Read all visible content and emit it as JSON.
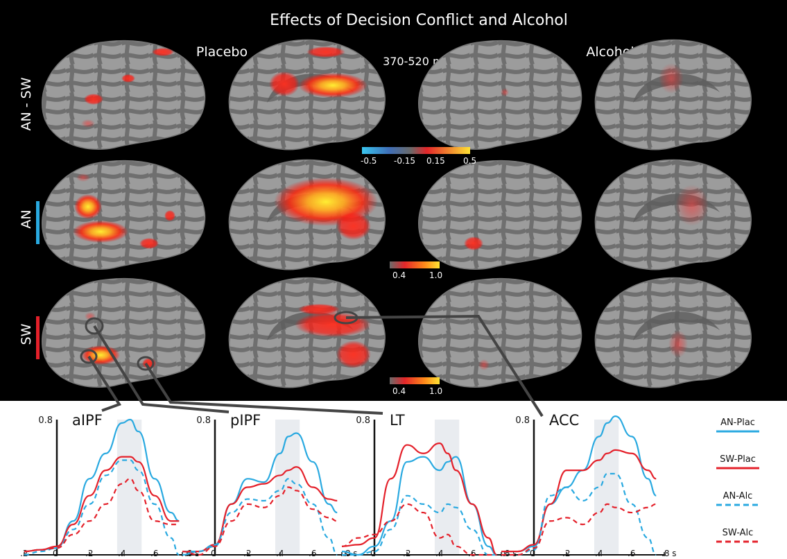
{
  "title": "Effects of Decision Conflict and Alcohol",
  "condition_labels": {
    "placebo": "Placebo",
    "time_window": "370-520 ms",
    "alcohol": "Alcohol"
  },
  "row_labels": {
    "an_sw": "AN - SW",
    "an": "AN",
    "sw": "SW"
  },
  "colorbars": {
    "contrast": {
      "ticks": [
        "-0.5",
        "-0.15",
        "0.15",
        "0.5"
      ]
    },
    "condition_an": {
      "ticks": [
        "0.4",
        "1.0"
      ]
    },
    "condition_sw": {
      "ticks": [
        "0.4",
        "1.0"
      ]
    }
  },
  "roi_titles": [
    "aIPF",
    "pIPF",
    "LT",
    "ACC"
  ],
  "x_ticks": [
    ".2",
    "0",
    ".2",
    ".4",
    ".6",
    ".8 s"
  ],
  "y_tick": "0.8",
  "legend": [
    {
      "label": "AN-Plac",
      "color": "#29a9e0",
      "dashed": false
    },
    {
      "label": "SW-Plac",
      "color": "#e4202a",
      "dashed": false
    },
    {
      "label": "AN-Alc",
      "color": "#29a9e0",
      "dashed": true
    },
    {
      "label": "SW-Alc",
      "color": "#e4202a",
      "dashed": true
    }
  ],
  "colors": {
    "an": "#29a9e0",
    "sw": "#e4202a",
    "panel_bg": "#000000",
    "highlight": "#e9ecf0"
  },
  "chart_data": {
    "type": "line",
    "x_unit": "s",
    "xlim": [
      -0.2,
      0.8
    ],
    "ylim": [
      0,
      0.8
    ],
    "highlight_window": [
      0.37,
      0.52
    ],
    "x": [
      -0.2,
      -0.1,
      0,
      0.1,
      0.2,
      0.3,
      0.4,
      0.45,
      0.5,
      0.6,
      0.7,
      0.75
    ],
    "panels": [
      {
        "title": "aIPF",
        "series": [
          {
            "name": "AN-Plac",
            "values": [
              0.02,
              0.03,
              0.04,
              0.2,
              0.45,
              0.6,
              0.78,
              0.8,
              0.73,
              0.45,
              0.25,
              0.2
            ]
          },
          {
            "name": "SW-Plac",
            "values": [
              0.02,
              0.03,
              0.05,
              0.18,
              0.35,
              0.5,
              0.58,
              0.58,
              0.55,
              0.35,
              0.2,
              0.2
            ]
          },
          {
            "name": "AN-Alc",
            "values": [
              0.0,
              0.02,
              0.04,
              0.15,
              0.3,
              0.47,
              0.56,
              0.56,
              0.5,
              0.3,
              0.1,
              0.0
            ]
          },
          {
            "name": "SW-Alc",
            "values": [
              0.02,
              0.03,
              0.04,
              0.12,
              0.2,
              0.3,
              0.42,
              0.45,
              0.38,
              0.2,
              0.18,
              0.18
            ]
          }
        ]
      },
      {
        "title": "pIPF",
        "series": [
          {
            "name": "AN-Plac",
            "values": [
              0.0,
              0.02,
              0.05,
              0.3,
              0.45,
              0.43,
              0.6,
              0.7,
              0.72,
              0.55,
              0.3,
              0.25
            ]
          },
          {
            "name": "SW-Plac",
            "values": [
              0.02,
              0.02,
              0.06,
              0.3,
              0.4,
              0.42,
              0.47,
              0.5,
              0.52,
              0.4,
              0.33,
              0.32
            ]
          },
          {
            "name": "AN-Alc",
            "values": [
              0.02,
              0.02,
              0.06,
              0.25,
              0.33,
              0.32,
              0.38,
              0.45,
              0.42,
              0.3,
              0.1,
              0.0
            ]
          },
          {
            "name": "SW-Alc",
            "values": [
              0.02,
              0.0,
              0.05,
              0.2,
              0.3,
              0.28,
              0.35,
              0.4,
              0.38,
              0.27,
              0.22,
              0.2
            ]
          }
        ]
      },
      {
        "title": "LT",
        "series": [
          {
            "name": "AN-Plac",
            "values": [
              0.02,
              0.0,
              0.05,
              0.2,
              0.55,
              0.58,
              0.5,
              0.55,
              0.58,
              0.3,
              0.05,
              0.0
            ]
          },
          {
            "name": "SW-Plac",
            "values": [
              0.05,
              0.06,
              0.1,
              0.45,
              0.65,
              0.6,
              0.66,
              0.6,
              0.5,
              0.3,
              0.1,
              0.0
            ]
          },
          {
            "name": "AN-Alc",
            "values": [
              0.0,
              0.0,
              0.02,
              0.15,
              0.35,
              0.3,
              0.25,
              0.3,
              0.28,
              0.15,
              0.0,
              0.0
            ]
          },
          {
            "name": "SW-Alc",
            "values": [
              0.05,
              0.1,
              0.12,
              0.2,
              0.3,
              0.25,
              0.1,
              0.12,
              0.05,
              0.0,
              0.0,
              0.0
            ]
          }
        ]
      },
      {
        "title": "ACC",
        "series": [
          {
            "name": "AN-Plac",
            "values": [
              0.02,
              0.02,
              0.05,
              0.3,
              0.4,
              0.5,
              0.7,
              0.78,
              0.82,
              0.7,
              0.45,
              0.35
            ]
          },
          {
            "name": "SW-Plac",
            "values": [
              0.02,
              0.02,
              0.06,
              0.3,
              0.5,
              0.5,
              0.56,
              0.6,
              0.62,
              0.6,
              0.5,
              0.45
            ]
          },
          {
            "name": "AN-Alc",
            "values": [
              0.0,
              0.0,
              0.03,
              0.35,
              0.4,
              0.32,
              0.4,
              0.48,
              0.48,
              0.3,
              0.1,
              0.0
            ]
          },
          {
            "name": "SW-Alc",
            "values": [
              0.0,
              0.0,
              0.04,
              0.2,
              0.22,
              0.18,
              0.25,
              0.3,
              0.28,
              0.25,
              0.28,
              0.3
            ]
          }
        ]
      }
    ]
  }
}
